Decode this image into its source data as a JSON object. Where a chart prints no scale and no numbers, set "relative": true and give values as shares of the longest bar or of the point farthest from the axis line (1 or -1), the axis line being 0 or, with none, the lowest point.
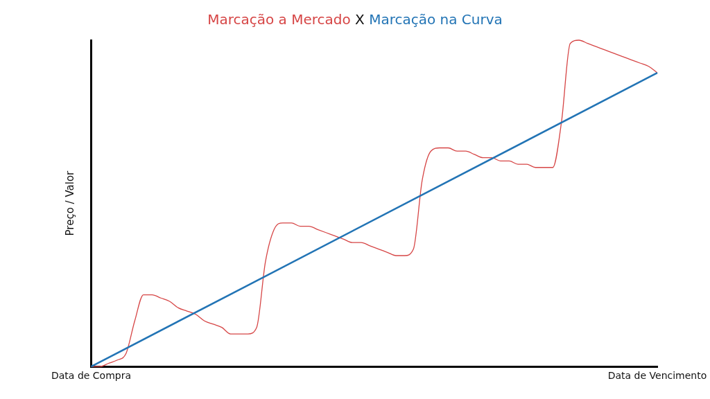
{
  "chart_data": {
    "type": "line",
    "title": "X",
    "ylabel": "Preço / Valor",
    "relative": true,
    "legend": "top",
    "grid": false,
    "marker": "none",
    "categories": [
      "Data de Compra",
      null,
      null,
      null,
      null,
      null,
      null,
      null,
      null,
      null,
      null,
      null,
      null,
      null,
      null,
      null,
      null,
      null,
      null,
      null,
      null,
      null,
      null,
      null,
      null,
      null,
      null,
      null,
      null,
      null,
      null,
      null,
      null,
      null,
      null,
      null,
      null,
      null,
      null,
      null,
      null,
      null,
      null,
      null,
      null,
      null,
      null,
      null,
      null,
      null,
      null,
      null,
      null,
      null,
      null,
      null,
      null,
      null,
      null,
      null,
      null,
      null,
      null,
      null,
      null,
      "Data de Vencimento"
    ],
    "series": [
      {
        "name": "Marcação a Mercado",
        "color": "#d64545",
        "values": [
          0,
          0.0,
          0.01,
          0.02,
          0.04,
          0.14,
          0.22,
          0.22,
          0.21,
          0.2,
          0.18,
          0.17,
          0.16,
          0.14,
          0.13,
          0.12,
          0.1,
          0.1,
          0.1,
          0.12,
          0.32,
          0.42,
          0.44,
          0.44,
          0.43,
          0.43,
          0.42,
          0.41,
          0.4,
          0.39,
          0.38,
          0.38,
          0.37,
          0.36,
          0.35,
          0.34,
          0.34,
          0.36,
          0.57,
          0.66,
          0.67,
          0.67,
          0.66,
          0.66,
          0.65,
          0.64,
          0.64,
          0.63,
          0.63,
          0.62,
          0.62,
          0.61,
          0.61,
          0.61,
          0.75,
          0.99,
          1,
          0.99,
          0.98,
          0.97,
          0.96,
          0.95,
          0.94,
          0.93,
          0.92,
          0.9
        ]
      },
      {
        "name": "Marcação na Curva",
        "color": "#2274b5",
        "values": [
          0,
          null,
          null,
          null,
          null,
          null,
          null,
          null,
          null,
          null,
          null,
          null,
          null,
          null,
          null,
          null,
          null,
          null,
          null,
          null,
          null,
          null,
          null,
          null,
          null,
          null,
          null,
          null,
          null,
          null,
          null,
          null,
          null,
          null,
          null,
          null,
          null,
          null,
          null,
          null,
          null,
          null,
          null,
          null,
          null,
          null,
          null,
          null,
          null,
          null,
          null,
          null,
          null,
          null,
          null,
          null,
          null,
          null,
          null,
          null,
          null,
          null,
          null,
          null,
          null,
          0.9
        ]
      }
    ]
  }
}
